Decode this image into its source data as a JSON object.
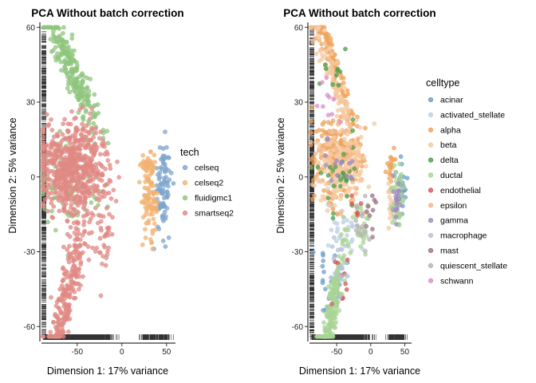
{
  "chart_data": [
    {
      "type": "scatter",
      "title": "PCA Without batch correction",
      "xlabel": "Dimension 1: 17% variance",
      "ylabel": "Dimension 2: 5% variance",
      "xlim": [
        -90,
        60
      ],
      "ylim": [
        -66,
        62
      ],
      "xticks": [
        -50,
        0,
        50
      ],
      "yticks": [
        -60,
        -30,
        0,
        30,
        60
      ],
      "xtick_labels": [
        "-50",
        "0",
        "50"
      ],
      "ytick_labels": [
        "-60",
        "-30",
        "0",
        "30",
        "60"
      ],
      "rug": true,
      "legend": {
        "title": "tech",
        "placement": "right",
        "entries": [
          "celseq",
          "celseq2",
          "fluidigmc1",
          "smartseq2"
        ]
      },
      "series": [
        {
          "name": "celseq",
          "color": "#7ea6cc",
          "clusters": [
            {
              "cx": 46,
              "cy": -4,
              "sx": 5,
              "sy": 9,
              "n": 90
            }
          ]
        },
        {
          "name": "celseq2",
          "color": "#f2b272",
          "clusters": [
            {
              "cx": 30,
              "cy": 4,
              "sx": 4,
              "sy": 3,
              "n": 40
            },
            {
              "cx": 31,
              "cy": -10,
              "sx": 4,
              "sy": 6,
              "n": 80
            }
          ]
        },
        {
          "name": "fluidigmc1",
          "color": "#8fc57e",
          "clusters": [
            {
              "cx": -55,
              "cy": 42,
              "sx": 12,
              "sy": 7,
              "n": 230,
              "dir": [
                -0.79,
                0.62
              ]
            },
            {
              "cx": -65,
              "cy": 2,
              "sx": 18,
              "sy": 10,
              "n": 60
            },
            {
              "cx": -45,
              "cy": -8,
              "sx": 15,
              "sy": 4,
              "n": 30
            }
          ]
        },
        {
          "name": "smartseq2",
          "color": "#e08a84",
          "clusters": [
            {
              "cx": -55,
              "cy": 4,
              "sx": 20,
              "sy": 9,
              "n": 620
            },
            {
              "cx": -60,
              "cy": -45,
              "sx": 13,
              "sy": 9,
              "n": 240,
              "dir": [
                0.55,
                0.83
              ]
            },
            {
              "cx": -20,
              "cy": -22,
              "sx": 6,
              "sy": 8,
              "n": 40
            }
          ]
        }
      ]
    },
    {
      "type": "scatter",
      "title": "PCA Without batch correction",
      "xlabel": "Dimension 1: 17% variance",
      "ylabel": "Dimension 2: 5% variance",
      "xlim": [
        -90,
        60
      ],
      "ylim": [
        -66,
        62
      ],
      "xticks": [
        -50,
        0,
        50
      ],
      "yticks": [
        -60,
        -30,
        0,
        30,
        60
      ],
      "xtick_labels": [
        "-50",
        "0",
        "50"
      ],
      "ytick_labels": [
        "-60",
        "-30",
        "0",
        "30",
        "60"
      ],
      "rug": true,
      "legend": {
        "title": "celltype",
        "placement": "right",
        "entries": [
          "acinar",
          "activated_stellate",
          "alpha",
          "beta",
          "delta",
          "ductal",
          "endothelial",
          "epsilon",
          "gamma",
          "macrophage",
          "mast",
          "quiescent_stellate",
          "schwann"
        ]
      },
      "series": [
        {
          "name": "acinar",
          "color": "#6f9fc9",
          "clusters": [
            {
              "cx": -60,
              "cy": -40,
              "sx": 10,
              "sy": 8,
              "n": 25
            },
            {
              "cx": 45,
              "cy": -5,
              "sx": 5,
              "sy": 8,
              "n": 25
            }
          ]
        },
        {
          "name": "activated_stellate",
          "color": "#bcd0e6",
          "clusters": [
            {
              "cx": -45,
              "cy": -20,
              "sx": 12,
              "sy": 12,
              "n": 40
            }
          ]
        },
        {
          "name": "alpha",
          "color": "#f0a35c",
          "clusters": [
            {
              "cx": -55,
              "cy": 45,
              "sx": 12,
              "sy": 6,
              "n": 120,
              "dir": [
                -0.79,
                0.62
              ]
            },
            {
              "cx": -50,
              "cy": 8,
              "sx": 18,
              "sy": 8,
              "n": 200
            },
            {
              "cx": 30,
              "cy": 4,
              "sx": 3,
              "sy": 3,
              "n": 20
            }
          ]
        },
        {
          "name": "beta",
          "color": "#f5c9a0",
          "clusters": [
            {
              "cx": -55,
              "cy": 40,
              "sx": 12,
              "sy": 7,
              "n": 90,
              "dir": [
                -0.79,
                0.62
              ]
            },
            {
              "cx": -45,
              "cy": 4,
              "sx": 18,
              "sy": 8,
              "n": 200
            },
            {
              "cx": 30,
              "cy": -10,
              "sx": 3,
              "sy": 5,
              "n": 20
            }
          ]
        },
        {
          "name": "delta",
          "color": "#4f9e4a",
          "clusters": [
            {
              "cx": -45,
              "cy": 3,
              "sx": 16,
              "sy": 8,
              "n": 30
            },
            {
              "cx": -55,
              "cy": 40,
              "sx": 10,
              "sy": 6,
              "n": 10
            }
          ]
        },
        {
          "name": "ductal",
          "color": "#a8d496",
          "clusters": [
            {
              "cx": -55,
              "cy": -52,
              "sx": 10,
              "sy": 7,
              "n": 200,
              "dir": [
                0.55,
                0.83
              ]
            },
            {
              "cx": 40,
              "cy": -8,
              "sx": 5,
              "sy": 7,
              "n": 50
            },
            {
              "cx": -10,
              "cy": -20,
              "sx": 6,
              "sy": 6,
              "n": 25
            }
          ]
        },
        {
          "name": "endothelial",
          "color": "#d35a5a",
          "clusters": [
            {
              "cx": -48,
              "cy": -40,
              "sx": 8,
              "sy": 6,
              "n": 10
            },
            {
              "cx": -20,
              "cy": -15,
              "sx": 6,
              "sy": 6,
              "n": 6
            }
          ]
        },
        {
          "name": "epsilon",
          "color": "#f2b58c",
          "clusters": [
            {
              "cx": -50,
              "cy": 10,
              "sx": 15,
              "sy": 8,
              "n": 15
            }
          ]
        },
        {
          "name": "gamma",
          "color": "#a08cbf",
          "clusters": [
            {
              "cx": 38,
              "cy": -8,
              "sx": 3,
              "sy": 4,
              "n": 20
            },
            {
              "cx": -50,
              "cy": 5,
              "sx": 12,
              "sy": 6,
              "n": 15
            }
          ]
        },
        {
          "name": "macrophage",
          "color": "#b6c2d6",
          "clusters": [
            {
              "cx": -48,
              "cy": -35,
              "sx": 8,
              "sy": 6,
              "n": 15
            }
          ]
        },
        {
          "name": "mast",
          "color": "#a07088",
          "clusters": [
            {
              "cx": -2,
              "cy": -15,
              "sx": 5,
              "sy": 5,
              "n": 10
            }
          ]
        },
        {
          "name": "quiescent_stellate",
          "color": "#b4b4b4",
          "clusters": [
            {
              "cx": -15,
              "cy": -20,
              "sx": 8,
              "sy": 8,
              "n": 15
            }
          ]
        },
        {
          "name": "schwann",
          "color": "#d890c8",
          "clusters": [
            {
              "cx": -60,
              "cy": 28,
              "sx": 8,
              "sy": 6,
              "n": 10
            }
          ]
        }
      ]
    }
  ]
}
